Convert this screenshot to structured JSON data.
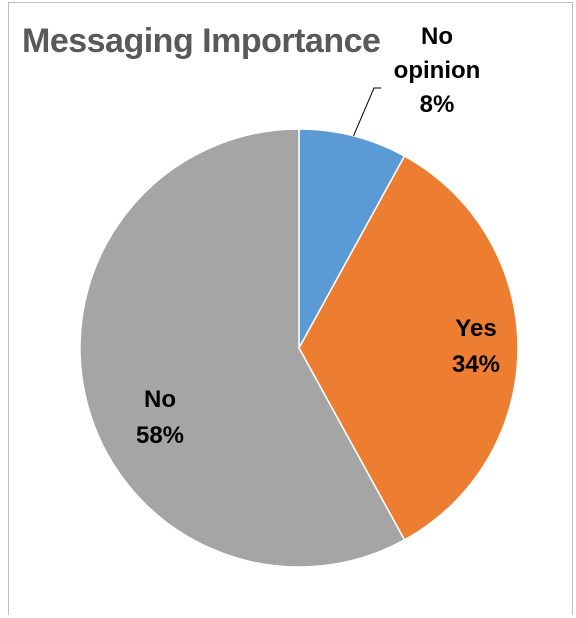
{
  "chart_data": {
    "type": "pie",
    "title": "Messaging Importance",
    "start_angle_deg": 0,
    "direction": "clockwise",
    "slices": [
      {
        "name": "No opinion",
        "label_lines": [
          "No",
          "opinion",
          "8%"
        ],
        "value": 8,
        "color": "#5b9bd5"
      },
      {
        "name": "Yes",
        "label_lines": [
          "Yes",
          "34%"
        ],
        "value": 34,
        "color": "#ed7d31"
      },
      {
        "name": "No",
        "label_lines": [
          "No",
          "58%"
        ],
        "value": 58,
        "color": "#a5a5a5"
      }
    ],
    "legend": "none",
    "slice_border_color": "#ffffff"
  }
}
